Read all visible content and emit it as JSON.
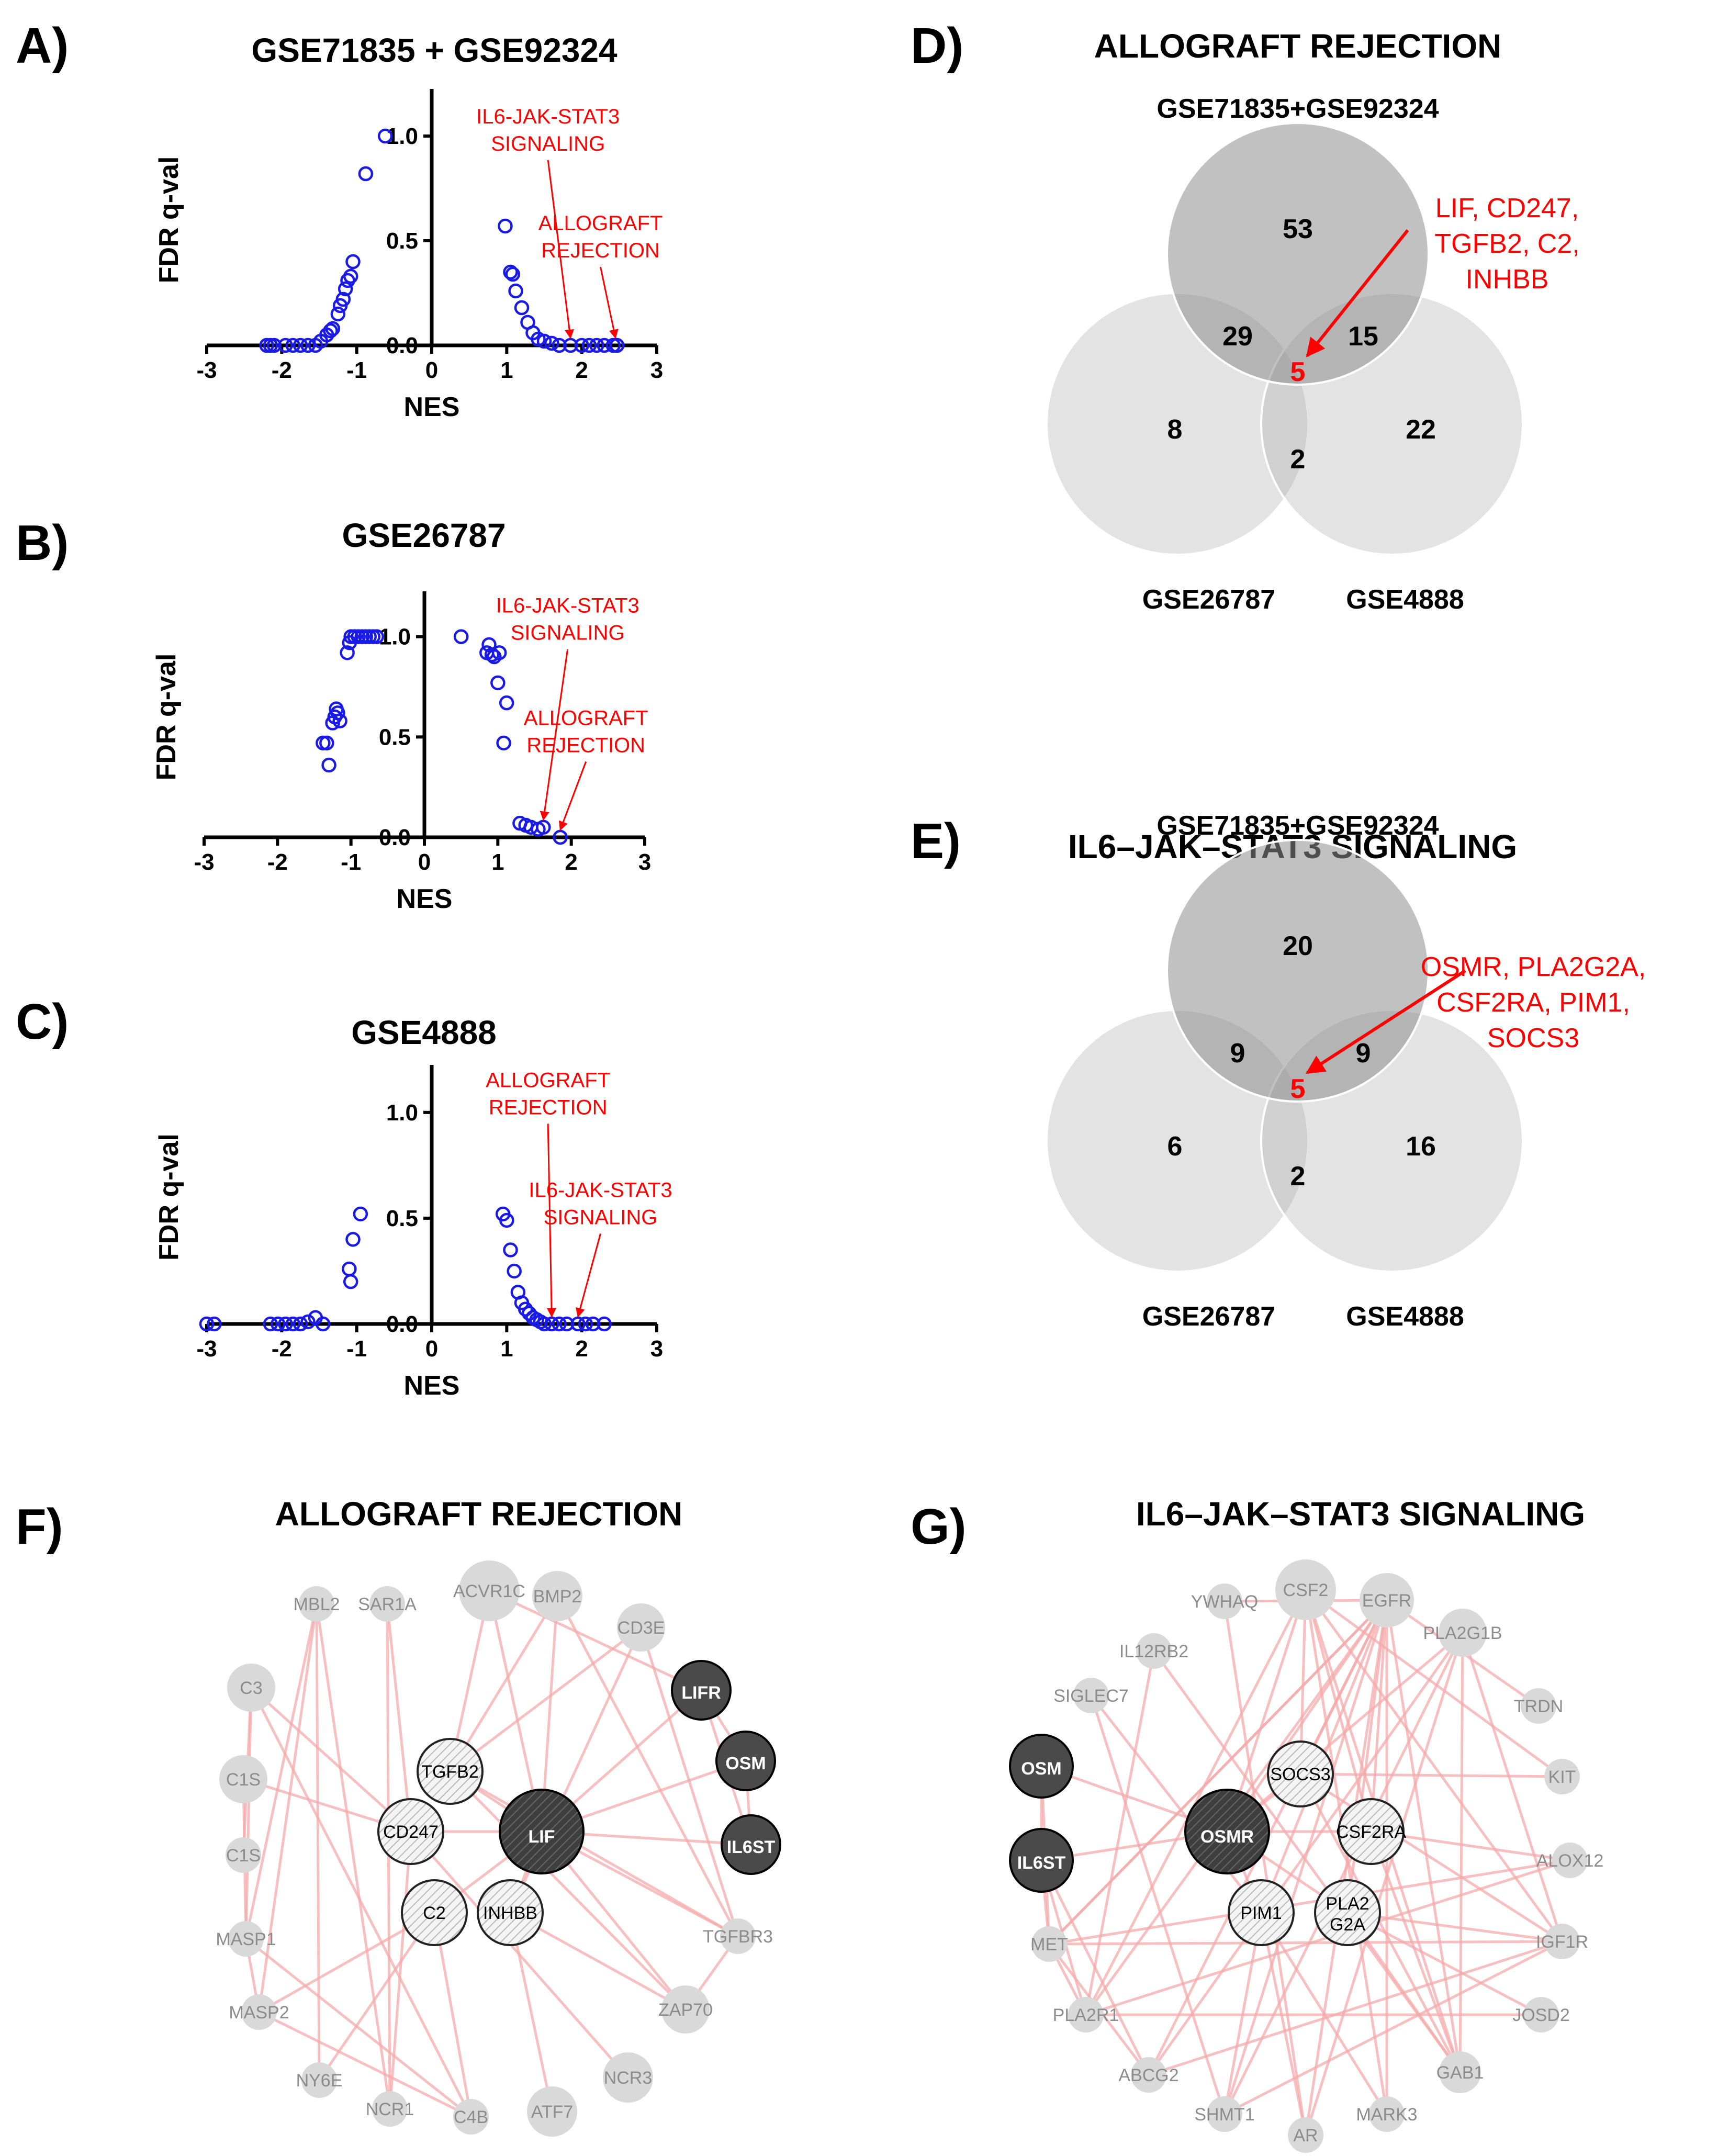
{
  "figure": {
    "colors": {
      "points": "#1a1ae6",
      "annotation": "#ff0000",
      "edge": "#f4a9a9",
      "node_light": "#d9d9d9",
      "node_dark": "#4a4a4a"
    }
  },
  "chart_data": [
    {
      "panel": "A)",
      "type": "scatter",
      "title": "GSE71835 + GSE92324",
      "xlabel": "NES",
      "ylabel": "FDR q-val",
      "xlim": [
        -3,
        3
      ],
      "ylim": [
        0,
        1.2
      ],
      "xticks": [
        "-3",
        "-2",
        "-1",
        "0",
        "1",
        "2",
        "3"
      ],
      "yticks": [
        "0.0",
        "0.5",
        "1.0"
      ],
      "annotations": [
        {
          "lines": [
            "IL6-JAK-STAT3",
            "SIGNALING"
          ],
          "target": [
            1.85,
            0.0
          ]
        },
        {
          "lines": [
            "ALLOGRAFT",
            "REJECTION"
          ],
          "target": [
            2.45,
            0.0
          ]
        }
      ],
      "points": [
        [
          -2.2,
          0.0
        ],
        [
          -2.15,
          0.0
        ],
        [
          -2.1,
          0.0
        ],
        [
          -1.95,
          0.0
        ],
        [
          -1.85,
          0.0
        ],
        [
          -1.75,
          0.0
        ],
        [
          -1.65,
          0.0
        ],
        [
          -1.55,
          0.0
        ],
        [
          -1.48,
          0.02
        ],
        [
          -1.4,
          0.05
        ],
        [
          -1.35,
          0.07
        ],
        [
          -1.32,
          0.08
        ],
        [
          -1.25,
          0.15
        ],
        [
          -1.22,
          0.19
        ],
        [
          -1.18,
          0.22
        ],
        [
          -1.15,
          0.27
        ],
        [
          -1.12,
          0.31
        ],
        [
          -1.08,
          0.33
        ],
        [
          -1.05,
          0.4
        ],
        [
          -0.88,
          0.82
        ],
        [
          -0.62,
          1.0
        ],
        [
          0.98,
          0.57
        ],
        [
          1.05,
          0.35
        ],
        [
          1.08,
          0.34
        ],
        [
          1.12,
          0.26
        ],
        [
          1.2,
          0.18
        ],
        [
          1.28,
          0.11
        ],
        [
          1.35,
          0.06
        ],
        [
          1.42,
          0.03
        ],
        [
          1.5,
          0.02
        ],
        [
          1.6,
          0.01
        ],
        [
          1.7,
          0.0
        ],
        [
          1.85,
          0.0
        ],
        [
          2.0,
          0.0
        ],
        [
          2.1,
          0.0
        ],
        [
          2.2,
          0.0
        ],
        [
          2.3,
          0.0
        ],
        [
          2.42,
          0.0
        ],
        [
          2.47,
          0.0
        ]
      ]
    },
    {
      "panel": "B)",
      "type": "scatter",
      "title": "GSE26787",
      "xlabel": "NES",
      "ylabel": "FDR q-val",
      "xlim": [
        -3,
        3
      ],
      "ylim": [
        0,
        1.2
      ],
      "xticks": [
        "-3",
        "-2",
        "-1",
        "0",
        "1",
        "2",
        "3"
      ],
      "yticks": [
        "0.0",
        "0.5",
        "1.0"
      ],
      "annotations": [
        {
          "lines": [
            "IL6-JAK-STAT3",
            "SIGNALING"
          ],
          "target": [
            1.62,
            0.05
          ]
        },
        {
          "lines": [
            "ALLOGRAFT",
            "REJECTION"
          ],
          "target": [
            1.85,
            0.0
          ]
        }
      ],
      "points": [
        [
          -1.38,
          0.47
        ],
        [
          -1.33,
          0.47
        ],
        [
          -1.3,
          0.36
        ],
        [
          -1.25,
          0.57
        ],
        [
          -1.22,
          0.6
        ],
        [
          -1.2,
          0.64
        ],
        [
          -1.18,
          0.62
        ],
        [
          -1.15,
          0.58
        ],
        [
          -1.05,
          0.92
        ],
        [
          -1.02,
          0.97
        ],
        [
          -1.0,
          1.0
        ],
        [
          -0.95,
          1.0
        ],
        [
          -0.9,
          1.0
        ],
        [
          -0.85,
          1.0
        ],
        [
          -0.8,
          1.0
        ],
        [
          -0.75,
          1.0
        ],
        [
          -0.7,
          1.0
        ],
        [
          -0.65,
          1.0
        ],
        [
          0.5,
          1.0
        ],
        [
          0.85,
          0.92
        ],
        [
          0.88,
          0.96
        ],
        [
          0.92,
          0.91
        ],
        [
          0.95,
          0.9
        ],
        [
          1.0,
          0.77
        ],
        [
          1.02,
          0.92
        ],
        [
          1.08,
          0.47
        ],
        [
          1.12,
          0.67
        ],
        [
          1.3,
          0.07
        ],
        [
          1.38,
          0.06
        ],
        [
          1.45,
          0.05
        ],
        [
          1.55,
          0.04
        ],
        [
          1.62,
          0.05
        ],
        [
          1.85,
          0.0
        ]
      ]
    },
    {
      "panel": "C)",
      "type": "scatter",
      "title": "GSE4888",
      "xlabel": "NES",
      "ylabel": "FDR q-val",
      "xlim": [
        -3,
        3
      ],
      "ylim": [
        0,
        1.2
      ],
      "xticks": [
        "-3",
        "-2",
        "-1",
        "0",
        "1",
        "2",
        "3"
      ],
      "yticks": [
        "0.0",
        "0.5",
        "1.0"
      ],
      "annotations": [
        {
          "lines": [
            "ALLOGRAFT",
            "REJECTION"
          ],
          "target": [
            1.6,
            0.0
          ]
        },
        {
          "lines": [
            "IL6-JAK-STAT3",
            "SIGNALING"
          ],
          "target": [
            1.95,
            0.0
          ]
        }
      ],
      "points": [
        [
          -3.0,
          0.0
        ],
        [
          -2.9,
          0.0
        ],
        [
          -2.15,
          0.0
        ],
        [
          -2.05,
          0.0
        ],
        [
          -1.95,
          0.0
        ],
        [
          -1.85,
          0.0
        ],
        [
          -1.75,
          0.0
        ],
        [
          -1.65,
          0.01
        ],
        [
          -1.55,
          0.03
        ],
        [
          -1.45,
          0.0
        ],
        [
          -1.1,
          0.26
        ],
        [
          -1.08,
          0.2
        ],
        [
          -1.05,
          0.4
        ],
        [
          -0.95,
          0.52
        ],
        [
          0.95,
          0.52
        ],
        [
          1.0,
          0.49
        ],
        [
          1.05,
          0.35
        ],
        [
          1.1,
          0.25
        ],
        [
          1.15,
          0.15
        ],
        [
          1.2,
          0.1
        ],
        [
          1.25,
          0.07
        ],
        [
          1.3,
          0.05
        ],
        [
          1.35,
          0.03
        ],
        [
          1.4,
          0.02
        ],
        [
          1.45,
          0.01
        ],
        [
          1.5,
          0.0
        ],
        [
          1.6,
          0.0
        ],
        [
          1.7,
          0.0
        ],
        [
          1.8,
          0.0
        ],
        [
          1.95,
          0.0
        ],
        [
          2.05,
          0.0
        ],
        [
          2.15,
          0.0
        ],
        [
          2.3,
          0.0
        ]
      ]
    }
  ],
  "venns": [
    {
      "panel": "D)",
      "title": "ALLOGRAFT REJECTION",
      "set_top": "GSE71835+GSE92324",
      "set_left": "GSE26787",
      "set_right": "GSE4888",
      "counts": {
        "top_only": "53",
        "left_only": "8",
        "right_only": "22",
        "top_left": "29",
        "top_right": "15",
        "left_right": "2",
        "all": "5"
      },
      "genes": [
        "LIF, CD247,",
        "TGFB2, C2,",
        "INHBB"
      ]
    },
    {
      "panel": "E)",
      "title": "IL6–JAK–STAT3 SIGNALING",
      "set_top": "GSE71835+GSE92324",
      "set_left": "GSE26787",
      "set_right": "GSE4888",
      "counts": {
        "top_only": "20",
        "left_only": "6",
        "right_only": "16",
        "top_left": "9",
        "top_right": "9",
        "left_right": "2",
        "all": "5"
      },
      "genes": [
        "OSMR, PLA2G2A,",
        "CSF2RA, PIM1,",
        "SOCS3"
      ]
    }
  ],
  "networks": [
    {
      "panel": "F)",
      "title": "ALLOGRAFT REJECTION",
      "nodes": [
        {
          "label": "SAR1A",
          "kind": "gray"
        },
        {
          "label": "ACVR1C",
          "kind": "gray"
        },
        {
          "label": "BMP2",
          "kind": "gray"
        },
        {
          "label": "CD3E",
          "kind": "gray"
        },
        {
          "label": "MBL2",
          "kind": "gray"
        },
        {
          "label": "C3",
          "kind": "gray"
        },
        {
          "label": "C1S",
          "kind": "gray"
        },
        {
          "label": "C1S",
          "kind": "gray"
        },
        {
          "label": "MASP1",
          "kind": "gray"
        },
        {
          "label": "MASP2",
          "kind": "gray"
        },
        {
          "label": "NY6E",
          "kind": "gray"
        },
        {
          "label": "NCR1",
          "kind": "gray"
        },
        {
          "label": "C4B",
          "kind": "gray"
        },
        {
          "label": "ATF7",
          "kind": "gray"
        },
        {
          "label": "NCR3",
          "kind": "gray"
        },
        {
          "label": "ZAP70",
          "kind": "gray"
        },
        {
          "label": "TGFBR3",
          "kind": "gray"
        },
        {
          "label": "LIFR",
          "kind": "dark"
        },
        {
          "label": "OSM",
          "kind": "dark"
        },
        {
          "label": "IL6ST",
          "kind": "dark"
        },
        {
          "label": "TGFB2",
          "kind": "hatched"
        },
        {
          "label": "CD247",
          "kind": "hatched"
        },
        {
          "label": "LIF",
          "kind": "dark-hatched"
        },
        {
          "label": "C2",
          "kind": "hatched"
        },
        {
          "label": "INHBB",
          "kind": "hatched"
        }
      ]
    },
    {
      "panel": "G)",
      "title": "IL6–JAK–STAT3 SIGNALING",
      "nodes": [
        {
          "label": "YWHAQ",
          "kind": "gray"
        },
        {
          "label": "CSF2",
          "kind": "gray"
        },
        {
          "label": "EGFR",
          "kind": "gray"
        },
        {
          "label": "PLA2G1B",
          "kind": "gray"
        },
        {
          "label": "IL12RB2",
          "kind": "gray"
        },
        {
          "label": "SIGLEC7",
          "kind": "gray"
        },
        {
          "label": "TRDN",
          "kind": "gray"
        },
        {
          "label": "KIT",
          "kind": "gray"
        },
        {
          "label": "ALOX12",
          "kind": "gray"
        },
        {
          "label": "IGF1R",
          "kind": "gray"
        },
        {
          "label": "JOSD2",
          "kind": "gray"
        },
        {
          "label": "GAB1",
          "kind": "gray"
        },
        {
          "label": "MARK3",
          "kind": "gray"
        },
        {
          "label": "AR",
          "kind": "gray"
        },
        {
          "label": "SHMT1",
          "kind": "gray"
        },
        {
          "label": "ABCG2",
          "kind": "gray"
        },
        {
          "label": "PLA2R1",
          "kind": "gray"
        },
        {
          "label": "MET",
          "kind": "gray"
        },
        {
          "label": "OSM",
          "kind": "dark"
        },
        {
          "label": "IL6ST",
          "kind": "dark"
        },
        {
          "label": "SOCS3",
          "kind": "hatched"
        },
        {
          "label": "OSMR",
          "kind": "dark-hatched"
        },
        {
          "label": "CSF2RA",
          "kind": "hatched"
        },
        {
          "label": "PIM1",
          "kind": "hatched"
        },
        {
          "label": "PLA2 G2A",
          "kind": "hatched"
        }
      ]
    }
  ]
}
